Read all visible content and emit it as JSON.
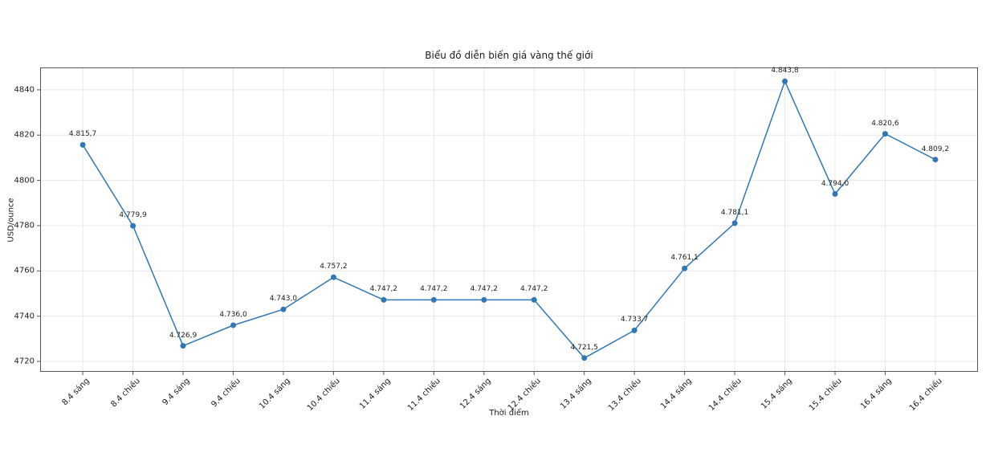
{
  "chart_data": {
    "type": "line",
    "title": "Biểu đồ diễn biến giá vàng thế giới",
    "xlabel": "Thời điểm",
    "ylabel": "USD/ounce",
    "categories": [
      "8.4 sáng",
      "8.4 chiều",
      "9.4 sáng",
      "9.4 chiều",
      "10.4 sáng",
      "10.4 chiều",
      "11.4 sáng",
      "11.4 chiều",
      "12.4 sáng",
      "12.4 chiều",
      "13.4 sáng",
      "13.4 chiều",
      "14.4 sáng",
      "14.4 chiều",
      "15.4 sáng",
      "15.4 chiều",
      "16.4 sáng",
      "16.4 chiều"
    ],
    "values": [
      4815.7,
      4779.9,
      4726.9,
      4736.0,
      4743.0,
      4757.2,
      4747.2,
      4747.2,
      4747.2,
      4747.2,
      4721.5,
      4733.7,
      4761.1,
      4781.1,
      4843.8,
      4794.0,
      4820.6,
      4809.2
    ],
    "point_labels": [
      "4.815,7",
      "4.779,9",
      "4.726,9",
      "4.736,0",
      "4.743,0",
      "4.757,2",
      "4.747,2",
      "4.747,2",
      "4.747,2",
      "4.747,2",
      "4.721,5",
      "4.733,7",
      "4.761,1",
      "4.781,1",
      "4.843,8",
      "4.794,0",
      "4.820,6",
      "4.809,2"
    ],
    "y_ticks": [
      4720,
      4740,
      4760,
      4780,
      4800,
      4820,
      4840
    ],
    "ylim": [
      4715.4,
      4849.9
    ],
    "x_margin": 0.85,
    "grid": true,
    "legend": "none",
    "colors": {
      "line": "#3277b5",
      "marker": "#3277b5",
      "grid": "#e8e8e8",
      "spine": "#555555",
      "tick": "#555555",
      "text": "#1a1a1a",
      "background": "#ffffff"
    }
  }
}
